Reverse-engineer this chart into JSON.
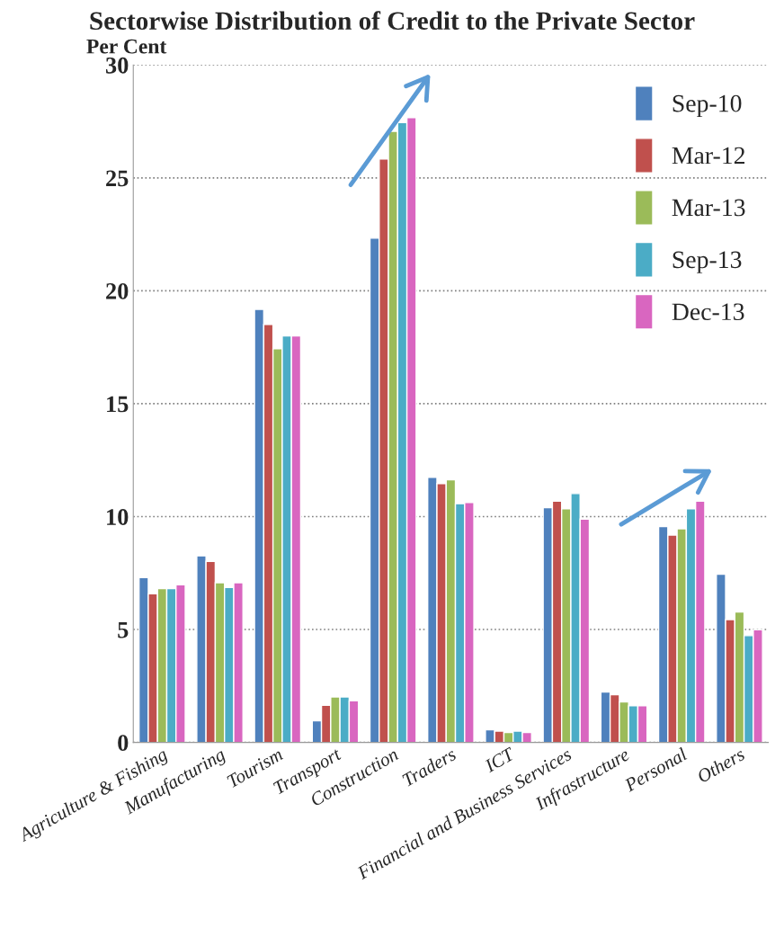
{
  "chart_data": {
    "type": "bar",
    "title": "Sectorwise Distribution of Credit to the Private Sector",
    "ylabel": "Per Cent",
    "categories": [
      "Agriculture & Fishing",
      "Manufacturing",
      "Tourism",
      "Transport",
      "Construction",
      "Traders",
      "ICT",
      "Financial and Business Services",
      "Infrastructure",
      "Personal",
      "Others"
    ],
    "series": [
      {
        "name": "Sep-10",
        "color": "#4f81bd",
        "values": [
          7.3,
          8.26,
          19.18,
          0.96,
          22.33,
          11.74,
          0.56,
          10.4,
          2.23,
          9.56,
          7.45
        ]
      },
      {
        "name": "Mar-12",
        "color": "#c0504d",
        "values": [
          6.58,
          8.02,
          18.51,
          1.64,
          25.84,
          11.46,
          0.5,
          10.68,
          2.11,
          9.18,
          5.44
        ]
      },
      {
        "name": "Mar-13",
        "color": "#9bbb59",
        "values": [
          6.81,
          7.07,
          17.43,
          2.01,
          27.06,
          11.63,
          0.44,
          10.35,
          1.79,
          9.46,
          5.78
        ]
      },
      {
        "name": "Sep-13",
        "color": "#4bacc6",
        "values": [
          6.81,
          6.86,
          18.0,
          2.01,
          27.45,
          10.57,
          0.5,
          11.02,
          1.62,
          10.35,
          4.73
        ]
      },
      {
        "name": "Dec-13",
        "color": "#d966c0",
        "values": [
          6.98,
          7.07,
          18.0,
          1.84,
          27.67,
          10.62,
          0.44,
          9.89,
          1.62,
          10.68,
          4.99
        ]
      }
    ],
    "ylim": [
      0,
      30
    ],
    "yticks": [
      0,
      5,
      10,
      15,
      20,
      25,
      30
    ],
    "grid": "y",
    "legend": "top right"
  }
}
